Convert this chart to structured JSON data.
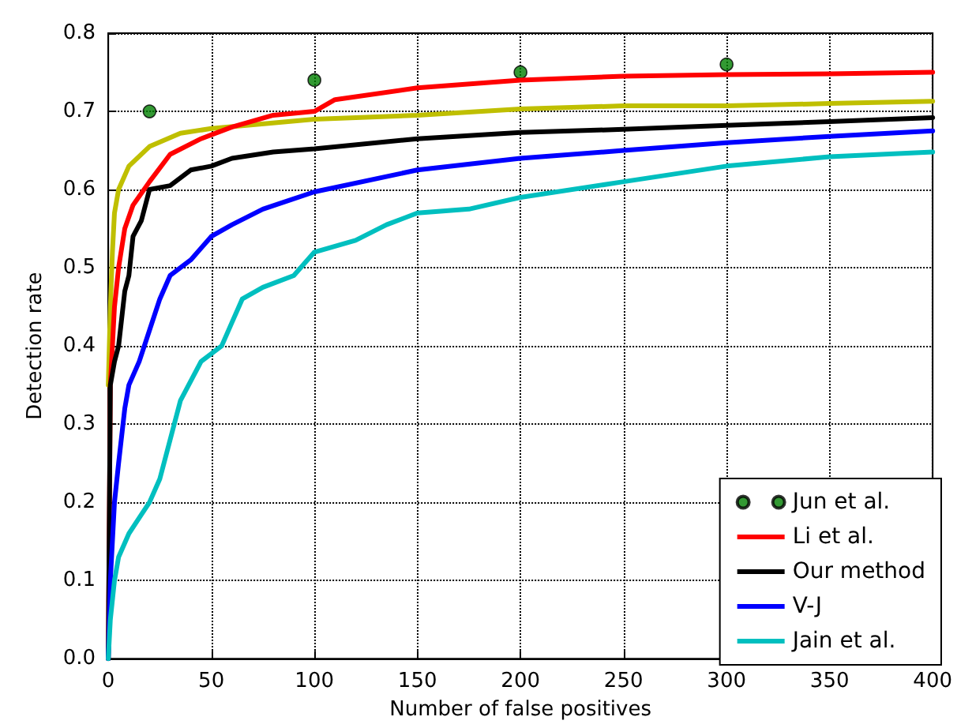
{
  "chart_data": {
    "type": "line",
    "xlabel": "Number of false positives",
    "ylabel": "Detection rate",
    "xlim": [
      0,
      400
    ],
    "ylim": [
      0,
      0.8
    ],
    "xticks": [
      0,
      50,
      100,
      150,
      200,
      250,
      300,
      350,
      400
    ],
    "yticks": [
      {
        "value": 0,
        "label": "0.0"
      },
      0.1,
      0.2,
      0.3,
      0.4,
      0.5,
      0.6,
      0.7,
      0.8
    ],
    "grid": true,
    "legend": "bottom right",
    "line_style": "solid",
    "series": [
      {
        "name": "Jun et al.",
        "type": "scatter",
        "marker": "circle",
        "color": "#007f00",
        "x": [
          20,
          100,
          200,
          300
        ],
        "values": [
          0.7,
          0.74,
          0.75,
          0.76
        ]
      },
      {
        "color": "#bfbf00",
        "x": [
          0,
          1,
          2,
          3,
          5,
          10,
          20,
          35,
          50,
          100,
          150,
          200,
          250,
          300,
          350,
          400
        ],
        "values": [
          0.35,
          0.45,
          0.52,
          0.57,
          0.6,
          0.63,
          0.655,
          0.672,
          0.678,
          0.69,
          0.695,
          0.703,
          0.707,
          0.707,
          0.71,
          0.713
        ]
      },
      {
        "name": "Li et al.",
        "color": "#ff0000",
        "x": [
          0,
          1,
          3,
          5,
          8,
          12,
          20,
          30,
          45,
          60,
          80,
          100,
          110,
          150,
          200,
          250,
          300,
          350,
          400
        ],
        "values": [
          0,
          0.35,
          0.45,
          0.5,
          0.55,
          0.58,
          0.61,
          0.645,
          0.665,
          0.68,
          0.695,
          0.7,
          0.715,
          0.73,
          0.74,
          0.745,
          0.747,
          0.748,
          0.75
        ]
      },
      {
        "name": "Our method",
        "color": "#000000",
        "x": [
          0,
          1,
          3,
          5,
          8,
          10,
          12,
          16,
          20,
          30,
          40,
          50,
          60,
          80,
          100,
          150,
          200,
          250,
          300,
          350,
          400
        ],
        "values": [
          0,
          0.35,
          0.38,
          0.4,
          0.47,
          0.49,
          0.54,
          0.56,
          0.6,
          0.605,
          0.625,
          0.63,
          0.64,
          0.648,
          0.652,
          0.665,
          0.673,
          0.677,
          0.682,
          0.687,
          0.692
        ]
      },
      {
        "name": "V-J",
        "color": "#0000ff",
        "x": [
          0,
          1,
          3,
          5,
          8,
          10,
          15,
          20,
          25,
          30,
          40,
          50,
          60,
          75,
          100,
          150,
          200,
          250,
          300,
          350,
          400
        ],
        "values": [
          0,
          0.1,
          0.2,
          0.25,
          0.32,
          0.35,
          0.38,
          0.42,
          0.46,
          0.49,
          0.51,
          0.54,
          0.555,
          0.575,
          0.597,
          0.625,
          0.64,
          0.65,
          0.66,
          0.668,
          0.675
        ]
      },
      {
        "name": "Jain et al.",
        "color": "#00bfbf",
        "x": [
          0,
          1,
          3,
          5,
          10,
          15,
          20,
          25,
          30,
          35,
          45,
          55,
          60,
          65,
          75,
          90,
          100,
          120,
          135,
          150,
          175,
          200,
          250,
          300,
          350,
          400
        ],
        "values": [
          0,
          0.05,
          0.1,
          0.13,
          0.16,
          0.18,
          0.2,
          0.23,
          0.28,
          0.33,
          0.38,
          0.4,
          0.43,
          0.46,
          0.475,
          0.49,
          0.52,
          0.535,
          0.555,
          0.57,
          0.575,
          0.59,
          0.61,
          0.63,
          0.642,
          0.648
        ]
      }
    ]
  }
}
